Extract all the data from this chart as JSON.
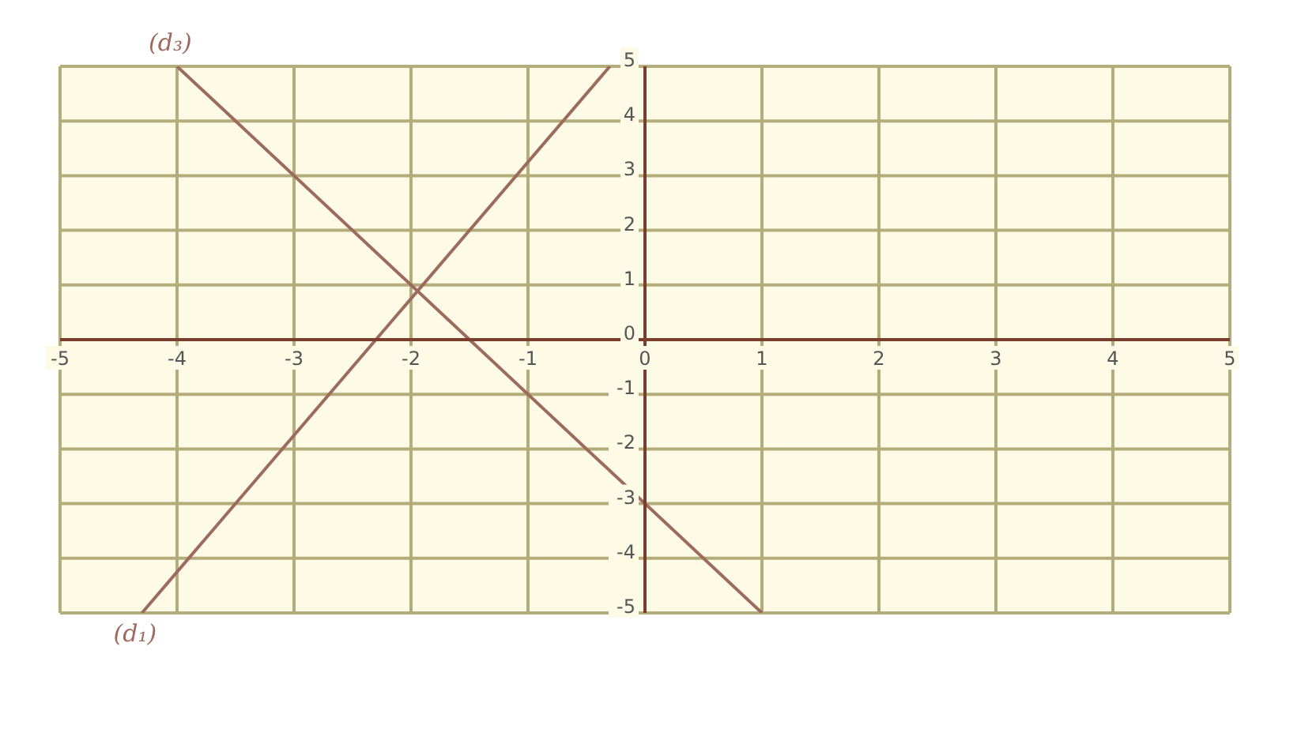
{
  "chart_data": {
    "type": "line",
    "xlim": [
      -5,
      5
    ],
    "ylim": [
      -5,
      5
    ],
    "xticks": [
      -5,
      -4,
      -3,
      -2,
      -1,
      0,
      1,
      2,
      3,
      4,
      5
    ],
    "yticks": [
      -5,
      -4,
      -3,
      -2,
      -1,
      0,
      1,
      2,
      3,
      4,
      5
    ],
    "grid": true,
    "legend": false,
    "marker": "none",
    "line_style": "solid",
    "series": [
      {
        "name": "(d₃)",
        "color": "#9c6b5e",
        "x": [
          -4,
          1
        ],
        "values": [
          5,
          -5
        ]
      },
      {
        "name": "(d₁)",
        "color": "#9c6b5e",
        "x": [
          -4.3,
          -0.3
        ],
        "values": [
          -5,
          5
        ]
      }
    ]
  }
}
